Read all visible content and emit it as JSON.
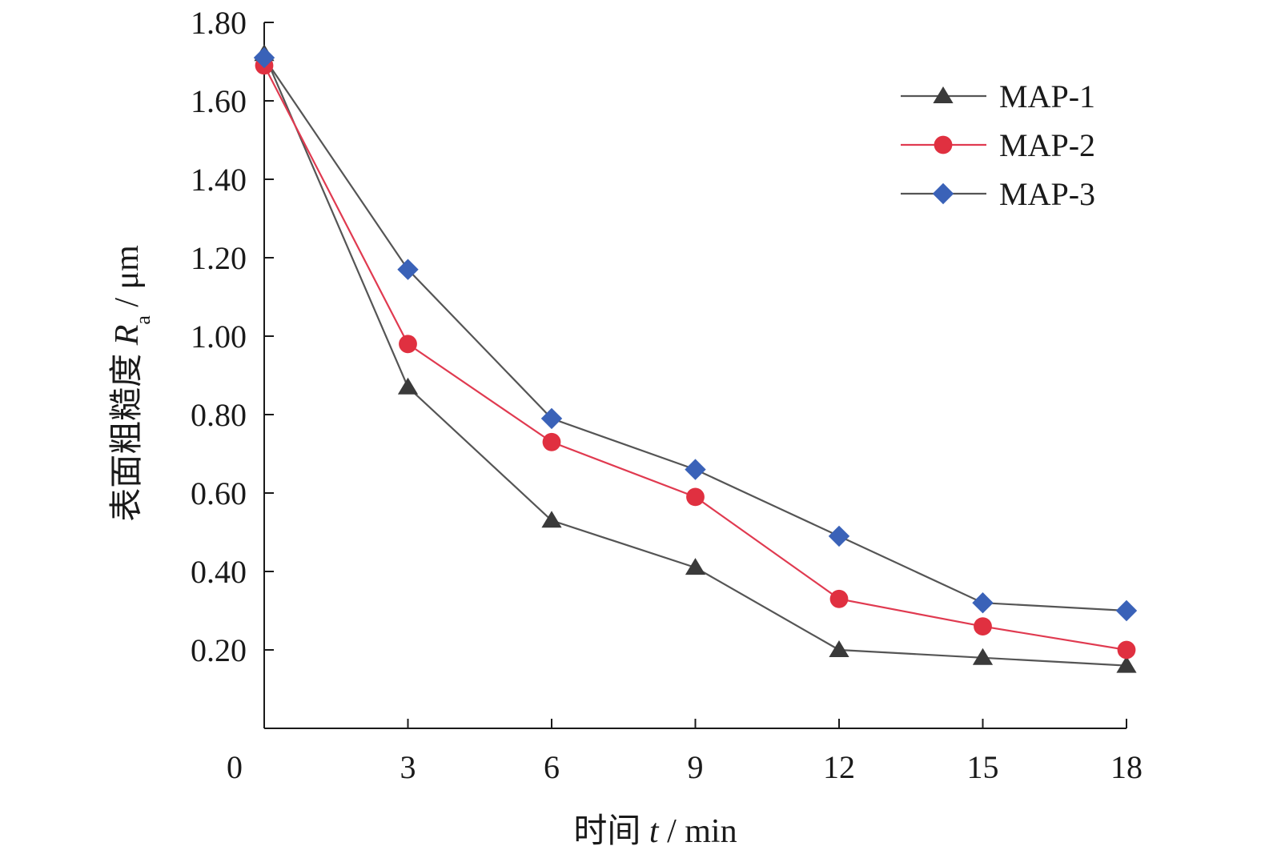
{
  "chart_data": {
    "type": "line",
    "x_zero_label": "0",
    "x": [
      0,
      3,
      6,
      9,
      12,
      15,
      18
    ],
    "x_ticks": [
      "3",
      "6",
      "9",
      "12",
      "15",
      "18"
    ],
    "y_ticks": [
      "0.20",
      "0.40",
      "0.60",
      "0.80",
      "1.00",
      "1.20",
      "1.40",
      "1.60",
      "1.80"
    ],
    "xlabel": {
      "prefix": "时间 ",
      "var": "t",
      "suffix": " / min"
    },
    "ylabel": {
      "prefix": "表面粗糙度 ",
      "var": "R",
      "sub": "a",
      "suffix": " / μm"
    },
    "xlim": [
      0,
      18
    ],
    "ylim": [
      0,
      1.8
    ],
    "grid": false,
    "legend_position": "top-right",
    "series": [
      {
        "name": "MAP-1",
        "marker": "triangle",
        "color": "#3a3a3a",
        "line_color": "#555555",
        "values": [
          1.72,
          0.87,
          0.53,
          0.41,
          0.2,
          0.18,
          0.16
        ]
      },
      {
        "name": "MAP-2",
        "marker": "circle",
        "color": "#e03040",
        "line_color": "#e03a50",
        "values": [
          1.69,
          0.98,
          0.73,
          0.59,
          0.33,
          0.26,
          0.2
        ]
      },
      {
        "name": "MAP-3",
        "marker": "diamond",
        "color": "#3a62b8",
        "line_color": "#555555",
        "values": [
          1.71,
          1.17,
          0.79,
          0.66,
          0.49,
          0.32,
          0.3
        ]
      }
    ]
  }
}
